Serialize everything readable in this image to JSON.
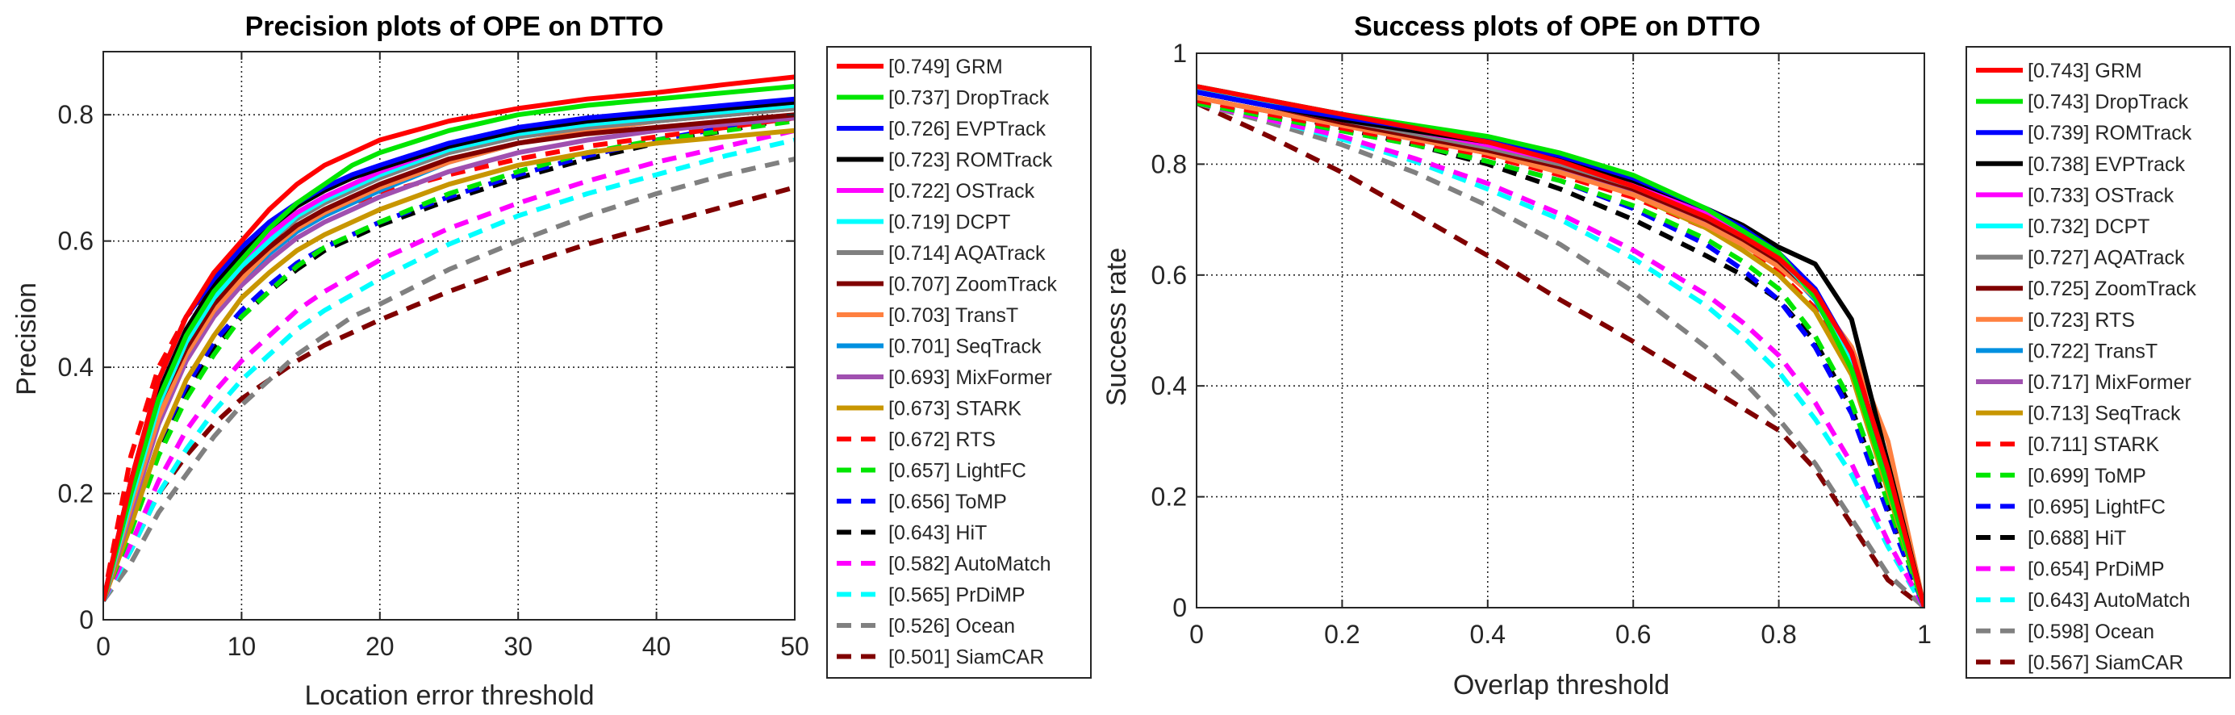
{
  "chart_data": [
    {
      "type": "line",
      "title": "Precision plots of OPE on DTTO",
      "xlabel": "Location error threshold",
      "ylabel": "Precision",
      "xlim": [
        0,
        50
      ],
      "ylim": [
        0,
        0.9
      ],
      "xticks": [
        0,
        10,
        20,
        30,
        40,
        50
      ],
      "yticks": [
        0,
        0.2,
        0.4,
        0.6,
        0.8
      ],
      "xtick_labels": [
        "0",
        "10",
        "20",
        "30",
        "40",
        "50"
      ],
      "ytick_labels": [
        "0",
        "0.2",
        "0.4",
        "0.6",
        "0.8"
      ],
      "grid": true,
      "legend_position": "outside-right",
      "x": [
        0,
        2,
        4,
        6,
        8,
        10,
        12,
        14,
        16,
        18,
        20,
        25,
        30,
        35,
        40,
        45,
        50
      ],
      "series": [
        {
          "name": "[0.749] GRM",
          "color": "#ff0000",
          "dash": false,
          "values": [
            0.03,
            0.22,
            0.38,
            0.48,
            0.55,
            0.6,
            0.65,
            0.69,
            0.72,
            0.74,
            0.76,
            0.79,
            0.81,
            0.825,
            0.835,
            0.848,
            0.86
          ]
        },
        {
          "name": "[0.737] DropTrack",
          "color": "#00e600",
          "dash": false,
          "values": [
            0.03,
            0.2,
            0.35,
            0.45,
            0.52,
            0.57,
            0.62,
            0.66,
            0.69,
            0.72,
            0.74,
            0.775,
            0.8,
            0.815,
            0.825,
            0.835,
            0.845
          ]
        },
        {
          "name": "[0.726] EVPTrack",
          "color": "#0000ff",
          "dash": false,
          "values": [
            0.03,
            0.22,
            0.38,
            0.48,
            0.54,
            0.59,
            0.63,
            0.66,
            0.685,
            0.705,
            0.72,
            0.755,
            0.78,
            0.795,
            0.805,
            0.815,
            0.825
          ]
        },
        {
          "name": "[0.723] ROMTrack",
          "color": "#000000",
          "dash": false,
          "values": [
            0.03,
            0.21,
            0.36,
            0.46,
            0.53,
            0.58,
            0.62,
            0.655,
            0.68,
            0.7,
            0.715,
            0.75,
            0.775,
            0.79,
            0.8,
            0.81,
            0.82
          ]
        },
        {
          "name": "[0.722] OSTrack",
          "color": "#ff00ff",
          "dash": false,
          "values": [
            0.03,
            0.2,
            0.35,
            0.45,
            0.52,
            0.57,
            0.61,
            0.645,
            0.67,
            0.69,
            0.71,
            0.75,
            0.775,
            0.79,
            0.8,
            0.81,
            0.82
          ]
        },
        {
          "name": "[0.719] DCPT",
          "color": "#00ffff",
          "dash": false,
          "values": [
            0.03,
            0.19,
            0.34,
            0.44,
            0.51,
            0.56,
            0.6,
            0.64,
            0.665,
            0.685,
            0.705,
            0.745,
            0.77,
            0.785,
            0.795,
            0.805,
            0.815
          ]
        },
        {
          "name": "[0.714] AQATrack",
          "color": "#808080",
          "dash": false,
          "values": [
            0.03,
            0.19,
            0.34,
            0.44,
            0.51,
            0.56,
            0.6,
            0.635,
            0.66,
            0.68,
            0.7,
            0.74,
            0.765,
            0.78,
            0.79,
            0.8,
            0.81
          ]
        },
        {
          "name": "[0.707] ZoomTrack",
          "color": "#800000",
          "dash": false,
          "values": [
            0.03,
            0.2,
            0.34,
            0.43,
            0.5,
            0.55,
            0.59,
            0.625,
            0.65,
            0.67,
            0.69,
            0.73,
            0.755,
            0.77,
            0.78,
            0.79,
            0.8
          ]
        },
        {
          "name": "[0.703] TransT",
          "color": "#ff8040",
          "dash": false,
          "values": [
            0.03,
            0.18,
            0.32,
            0.42,
            0.49,
            0.54,
            0.585,
            0.62,
            0.645,
            0.665,
            0.685,
            0.725,
            0.755,
            0.775,
            0.79,
            0.8,
            0.81
          ]
        },
        {
          "name": "[0.701] SeqTrack",
          "color": "#0090e0",
          "dash": false,
          "values": [
            0.03,
            0.18,
            0.32,
            0.42,
            0.49,
            0.54,
            0.58,
            0.615,
            0.64,
            0.66,
            0.68,
            0.725,
            0.755,
            0.775,
            0.79,
            0.8,
            0.81
          ]
        },
        {
          "name": "[0.693] MixFormer",
          "color": "#a050b0",
          "dash": false,
          "values": [
            0.03,
            0.17,
            0.31,
            0.41,
            0.48,
            0.53,
            0.57,
            0.605,
            0.63,
            0.65,
            0.67,
            0.71,
            0.74,
            0.76,
            0.775,
            0.785,
            0.795
          ]
        },
        {
          "name": "[0.673] STARK",
          "color": "#c89600",
          "dash": false,
          "values": [
            0.03,
            0.15,
            0.28,
            0.38,
            0.45,
            0.51,
            0.55,
            0.585,
            0.61,
            0.63,
            0.65,
            0.69,
            0.72,
            0.74,
            0.755,
            0.765,
            0.775
          ]
        },
        {
          "name": "[0.672] RTS",
          "color": "#ff0000",
          "dash": true,
          "values": [
            0.03,
            0.26,
            0.4,
            0.48,
            0.53,
            0.57,
            0.6,
            0.625,
            0.645,
            0.66,
            0.675,
            0.705,
            0.73,
            0.75,
            0.765,
            0.78,
            0.795
          ]
        },
        {
          "name": "[0.657] LightFC",
          "color": "#00e600",
          "dash": true,
          "values": [
            0.03,
            0.14,
            0.26,
            0.35,
            0.42,
            0.48,
            0.52,
            0.56,
            0.59,
            0.61,
            0.63,
            0.675,
            0.71,
            0.74,
            0.76,
            0.775,
            0.79
          ]
        },
        {
          "name": "[0.656] ToMP",
          "color": "#0000ff",
          "dash": true,
          "values": [
            0.03,
            0.15,
            0.28,
            0.37,
            0.44,
            0.49,
            0.53,
            0.565,
            0.59,
            0.61,
            0.63,
            0.67,
            0.705,
            0.735,
            0.76,
            0.78,
            0.8
          ]
        },
        {
          "name": "[0.643] HiT",
          "color": "#000000",
          "dash": true,
          "values": [
            0.03,
            0.15,
            0.27,
            0.36,
            0.43,
            0.48,
            0.52,
            0.555,
            0.585,
            0.605,
            0.625,
            0.665,
            0.7,
            0.73,
            0.755,
            0.775,
            0.795
          ]
        },
        {
          "name": "[0.582] AutoMatch",
          "color": "#ff00ff",
          "dash": true,
          "values": [
            0.03,
            0.12,
            0.22,
            0.3,
            0.36,
            0.41,
            0.45,
            0.49,
            0.52,
            0.545,
            0.57,
            0.62,
            0.66,
            0.695,
            0.725,
            0.75,
            0.775
          ]
        },
        {
          "name": "[0.565] PrDiMP",
          "color": "#00ffff",
          "dash": true,
          "values": [
            0.03,
            0.11,
            0.2,
            0.27,
            0.33,
            0.38,
            0.42,
            0.46,
            0.49,
            0.515,
            0.54,
            0.595,
            0.64,
            0.675,
            0.705,
            0.735,
            0.76
          ]
        },
        {
          "name": "[0.526] Ocean",
          "color": "#808080",
          "dash": true,
          "values": [
            0.03,
            0.09,
            0.17,
            0.23,
            0.29,
            0.34,
            0.38,
            0.42,
            0.45,
            0.48,
            0.5,
            0.555,
            0.6,
            0.64,
            0.675,
            0.705,
            0.73
          ]
        },
        {
          "name": "[0.501] SiamCAR",
          "color": "#800000",
          "dash": true,
          "values": [
            0.03,
            0.11,
            0.2,
            0.26,
            0.31,
            0.35,
            0.38,
            0.41,
            0.435,
            0.455,
            0.475,
            0.52,
            0.56,
            0.595,
            0.625,
            0.655,
            0.685
          ]
        }
      ]
    },
    {
      "type": "line",
      "title": "Success plots of OPE on DTTO",
      "xlabel": "Overlap threshold",
      "ylabel": "Success rate",
      "xlim": [
        0,
        1
      ],
      "ylim": [
        0,
        1
      ],
      "xticks": [
        0,
        0.2,
        0.4,
        0.6,
        0.8,
        1
      ],
      "yticks": [
        0,
        0.2,
        0.4,
        0.6,
        0.8,
        1
      ],
      "xtick_labels": [
        "0",
        "0.2",
        "0.4",
        "0.6",
        "0.8",
        "1"
      ],
      "ytick_labels": [
        "0",
        "0.2",
        "0.4",
        "0.6",
        "0.8",
        "1"
      ],
      "grid": true,
      "legend_position": "outside-right",
      "x": [
        0,
        0.1,
        0.2,
        0.3,
        0.4,
        0.5,
        0.6,
        0.7,
        0.75,
        0.8,
        0.85,
        0.9,
        0.95,
        1.0
      ],
      "series": [
        {
          "name": "[0.743] GRM",
          "color": "#ff0000",
          "dash": false,
          "values": [
            0.94,
            0.915,
            0.89,
            0.865,
            0.84,
            0.805,
            0.76,
            0.705,
            0.67,
            0.63,
            0.57,
            0.46,
            0.25,
            0.0
          ]
        },
        {
          "name": "[0.743] DropTrack",
          "color": "#00e600",
          "dash": false,
          "values": [
            0.94,
            0.915,
            0.89,
            0.87,
            0.85,
            0.82,
            0.78,
            0.72,
            0.68,
            0.64,
            0.56,
            0.43,
            0.22,
            0.0
          ]
        },
        {
          "name": "[0.739] ROMTrack",
          "color": "#0000ff",
          "dash": false,
          "values": [
            0.93,
            0.905,
            0.885,
            0.865,
            0.845,
            0.815,
            0.775,
            0.72,
            0.685,
            0.64,
            0.575,
            0.46,
            0.24,
            0.0
          ]
        },
        {
          "name": "[0.738] EVPTrack",
          "color": "#000000",
          "dash": false,
          "values": [
            0.93,
            0.905,
            0.88,
            0.86,
            0.84,
            0.81,
            0.77,
            0.72,
            0.69,
            0.65,
            0.62,
            0.52,
            0.26,
            0.0
          ]
        },
        {
          "name": "[0.733] OSTrack",
          "color": "#ff00ff",
          "dash": false,
          "values": [
            0.93,
            0.905,
            0.88,
            0.86,
            0.835,
            0.805,
            0.765,
            0.71,
            0.675,
            0.635,
            0.57,
            0.46,
            0.24,
            0.0
          ]
        },
        {
          "name": "[0.732] DCPT",
          "color": "#00ffff",
          "dash": false,
          "values": [
            0.935,
            0.91,
            0.89,
            0.87,
            0.845,
            0.815,
            0.775,
            0.72,
            0.68,
            0.635,
            0.56,
            0.44,
            0.22,
            0.0
          ]
        },
        {
          "name": "[0.727] AQATrack",
          "color": "#808080",
          "dash": false,
          "values": [
            0.93,
            0.905,
            0.88,
            0.855,
            0.83,
            0.8,
            0.76,
            0.705,
            0.67,
            0.63,
            0.565,
            0.45,
            0.23,
            0.0
          ]
        },
        {
          "name": "[0.725] ZoomTrack",
          "color": "#800000",
          "dash": false,
          "values": [
            0.93,
            0.905,
            0.875,
            0.85,
            0.825,
            0.795,
            0.755,
            0.7,
            0.665,
            0.625,
            0.565,
            0.45,
            0.23,
            0.0
          ]
        },
        {
          "name": "[0.723] RTS",
          "color": "#ff8040",
          "dash": false,
          "values": [
            0.92,
            0.895,
            0.87,
            0.845,
            0.82,
            0.785,
            0.745,
            0.69,
            0.655,
            0.615,
            0.56,
            0.47,
            0.3,
            0.0
          ]
        },
        {
          "name": "[0.722] TransT",
          "color": "#0090e0",
          "dash": false,
          "values": [
            0.94,
            0.915,
            0.89,
            0.865,
            0.84,
            0.81,
            0.77,
            0.71,
            0.67,
            0.625,
            0.555,
            0.44,
            0.22,
            0.0
          ]
        },
        {
          "name": "[0.717] MixFormer",
          "color": "#a050b0",
          "dash": false,
          "values": [
            0.92,
            0.895,
            0.87,
            0.845,
            0.82,
            0.79,
            0.75,
            0.695,
            0.66,
            0.62,
            0.56,
            0.45,
            0.23,
            0.0
          ]
        },
        {
          "name": "[0.713] SeqTrack",
          "color": "#c89600",
          "dash": false,
          "values": [
            0.93,
            0.905,
            0.88,
            0.85,
            0.825,
            0.79,
            0.745,
            0.685,
            0.645,
            0.6,
            0.535,
            0.42,
            0.21,
            0.0
          ]
        },
        {
          "name": "[0.711] STARK",
          "color": "#ff0000",
          "dash": true,
          "values": [
            0.915,
            0.89,
            0.865,
            0.84,
            0.815,
            0.78,
            0.74,
            0.685,
            0.65,
            0.605,
            0.54,
            0.43,
            0.22,
            0.0
          ]
        },
        {
          "name": "[0.699] ToMP",
          "color": "#00e600",
          "dash": true,
          "values": [
            0.91,
            0.885,
            0.86,
            0.835,
            0.805,
            0.77,
            0.725,
            0.665,
            0.625,
            0.575,
            0.49,
            0.37,
            0.19,
            0.0
          ]
        },
        {
          "name": "[0.695] LightFC",
          "color": "#0000ff",
          "dash": true,
          "values": [
            0.91,
            0.885,
            0.86,
            0.835,
            0.805,
            0.77,
            0.72,
            0.655,
            0.61,
            0.555,
            0.47,
            0.35,
            0.17,
            0.0
          ]
        },
        {
          "name": "[0.688] HiT",
          "color": "#000000",
          "dash": true,
          "values": [
            0.92,
            0.895,
            0.865,
            0.835,
            0.8,
            0.755,
            0.7,
            0.635,
            0.6,
            0.555,
            0.48,
            0.36,
            0.18,
            0.0
          ]
        },
        {
          "name": "[0.654] PrDiMP",
          "color": "#ff00ff",
          "dash": true,
          "values": [
            0.91,
            0.88,
            0.85,
            0.81,
            0.765,
            0.71,
            0.645,
            0.565,
            0.515,
            0.455,
            0.37,
            0.26,
            0.12,
            0.0
          ]
        },
        {
          "name": "[0.643] AutoMatch",
          "color": "#00ffff",
          "dash": true,
          "values": [
            0.91,
            0.88,
            0.845,
            0.805,
            0.755,
            0.7,
            0.63,
            0.545,
            0.49,
            0.425,
            0.34,
            0.24,
            0.11,
            0.0
          ]
        },
        {
          "name": "[0.598] Ocean",
          "color": "#808080",
          "dash": true,
          "values": [
            0.91,
            0.875,
            0.835,
            0.785,
            0.725,
            0.655,
            0.57,
            0.47,
            0.41,
            0.34,
            0.26,
            0.16,
            0.06,
            0.0
          ]
        },
        {
          "name": "[0.567] SiamCAR",
          "color": "#800000",
          "dash": true,
          "values": [
            0.91,
            0.85,
            0.785,
            0.71,
            0.635,
            0.555,
            0.48,
            0.4,
            0.36,
            0.32,
            0.25,
            0.15,
            0.05,
            0.0
          ]
        }
      ]
    }
  ]
}
